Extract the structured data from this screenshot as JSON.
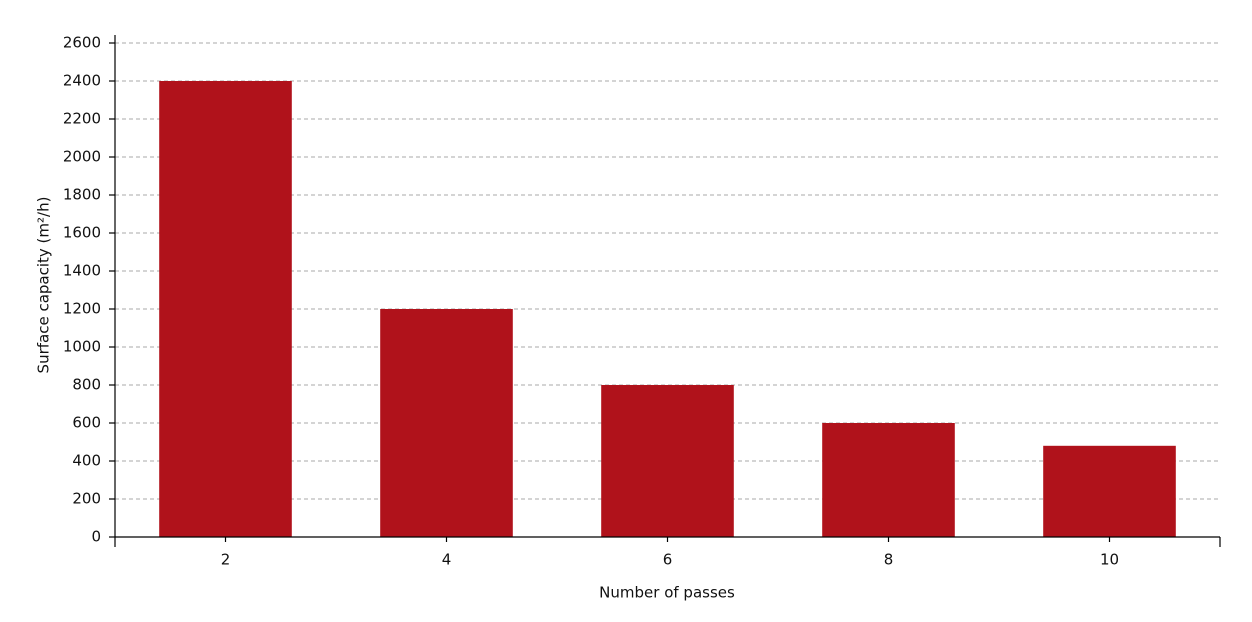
{
  "chart_data": {
    "type": "bar",
    "x_label": "Number of passes",
    "y_label": "Surface capacity (m²/h)",
    "categories": [
      "2",
      "4",
      "6",
      "8",
      "10"
    ],
    "values": [
      2400,
      1200,
      800,
      600,
      480
    ],
    "color": "#b0121b",
    "ylim": [
      0,
      2600
    ],
    "yticks": [
      0,
      200,
      400,
      600,
      800,
      1000,
      1200,
      1400,
      1600,
      1800,
      2000,
      2200,
      2400,
      2600
    ],
    "grid": true
  }
}
